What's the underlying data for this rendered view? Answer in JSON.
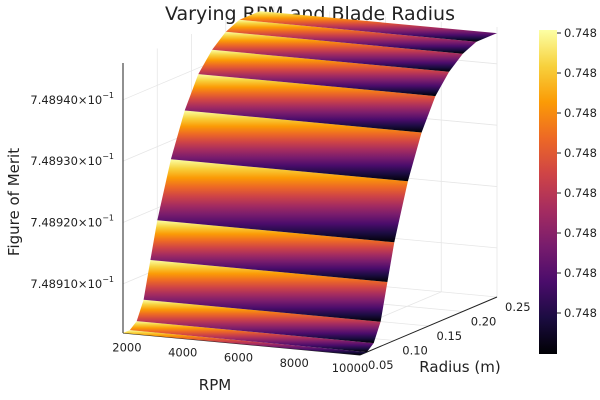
{
  "chart_data": {
    "type": "surface",
    "title": "Varying RPM and Blade Radius",
    "xlabel": "RPM",
    "ylabel": "Radius (m)",
    "zlabel": "Figure of Merit",
    "xlim": [
      1500,
      10000
    ],
    "ylim": [
      0.05,
      0.25
    ],
    "xticks": [
      2000,
      4000,
      6000,
      8000,
      10000
    ],
    "xtick_labels": [
      "2000",
      "4000",
      "6000",
      "8000",
      "10000"
    ],
    "yticks": [
      0.05,
      0.1,
      0.15,
      0.2,
      0.25
    ],
    "ytick_labels": [
      "0.05",
      "0.10",
      "0.15",
      "0.20",
      "0.25"
    ],
    "zlim": [
      0.748902,
      0.748946
    ],
    "zticks": [
      0.74891,
      0.74892,
      0.74893,
      0.74894
    ],
    "ztick_labels": [
      {
        "mantissa": "7.48910",
        "base": "×10",
        "exp": "−1"
      },
      {
        "mantissa": "7.48920",
        "base": "×10",
        "exp": "−1"
      },
      {
        "mantissa": "7.48930",
        "base": "×10",
        "exp": "−1"
      },
      {
        "mantissa": "7.48940",
        "base": "×10",
        "exp": "−1"
      }
    ],
    "surface_description": "Figure of merit rises steeply with radius and is nearly constant with RPM",
    "surface_profile": {
      "radius": [
        0.05,
        0.06,
        0.07,
        0.08,
        0.09,
        0.1,
        0.12,
        0.14,
        0.16,
        0.18,
        0.2,
        0.22,
        0.25
      ],
      "figure_of_merit": [
        0.748902,
        0.748902,
        0.748903,
        0.748906,
        0.748912,
        0.748918,
        0.748927,
        0.748934,
        0.748939,
        0.748942,
        0.748944,
        0.748945,
        0.748945
      ]
    },
    "colorbar": {
      "colormap": "inferno",
      "tick_labels": [
        "0.748",
        "0.748",
        "0.748",
        "0.748",
        "0.748",
        "0.748",
        "0.748",
        "0.748"
      ],
      "colors": [
        "#000004",
        "#1b0c41",
        "#4a0c6b",
        "#781c6d",
        "#a52c60",
        "#cf4446",
        "#ed6925",
        "#fb9b06",
        "#f7d13d",
        "#fcffa4"
      ]
    },
    "grid": true
  }
}
